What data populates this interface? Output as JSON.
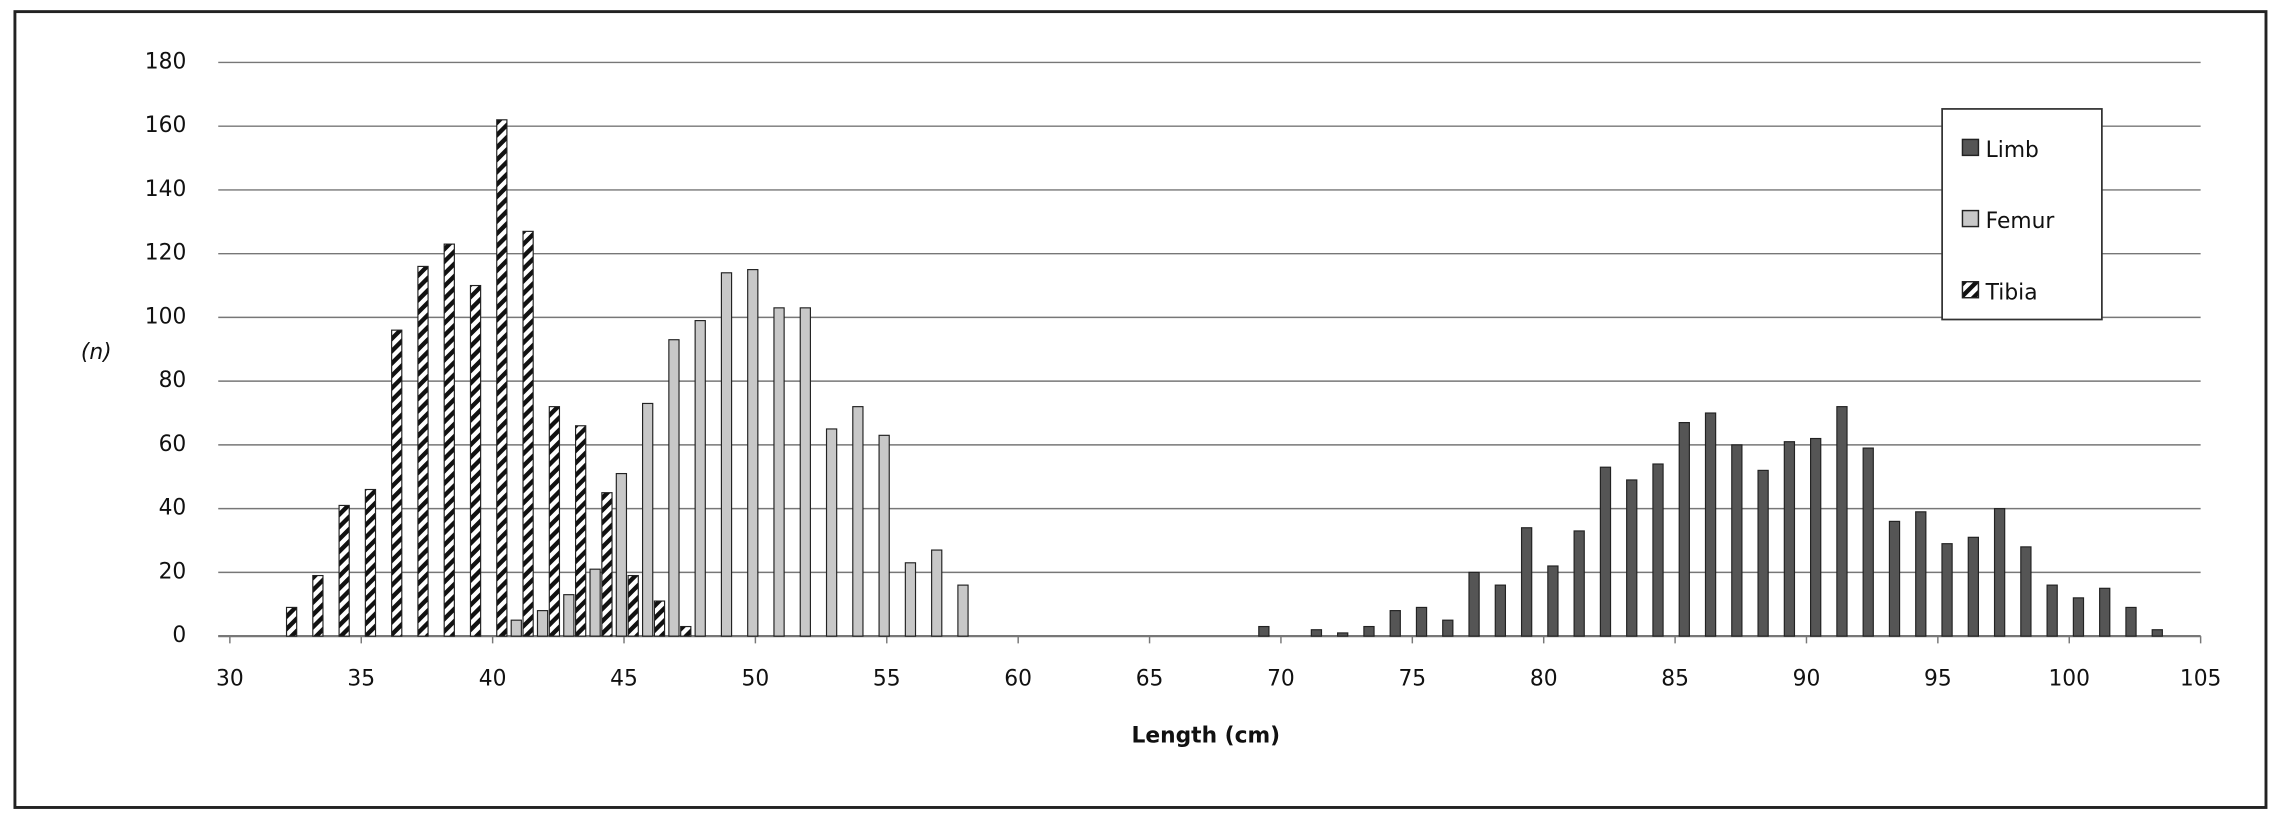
{
  "chart_data": {
    "type": "bar",
    "x_label": "Length (cm)",
    "y_label": "(n)",
    "x": [
      32,
      33,
      34,
      35,
      36,
      37,
      38,
      39,
      40,
      41,
      42,
      43,
      44,
      45,
      46,
      47,
      48,
      49,
      50,
      51,
      52,
      53,
      54,
      55,
      56,
      57,
      58,
      59,
      60,
      61,
      62,
      63,
      64,
      65,
      66,
      67,
      68,
      69,
      70,
      71,
      72,
      73,
      74,
      75,
      76,
      77,
      78,
      79,
      80,
      81,
      82,
      83,
      84,
      85,
      86,
      87,
      88,
      89,
      90,
      91,
      92,
      93,
      94,
      95,
      96,
      97,
      98,
      99,
      100,
      101,
      102,
      103
    ],
    "series": [
      {
        "name": "Limb",
        "color": "#555555",
        "values": [
          null,
          null,
          null,
          null,
          null,
          null,
          null,
          null,
          null,
          null,
          null,
          null,
          null,
          null,
          null,
          null,
          null,
          null,
          null,
          null,
          null,
          null,
          null,
          null,
          null,
          null,
          null,
          null,
          null,
          null,
          null,
          null,
          null,
          null,
          null,
          null,
          null,
          3,
          null,
          2,
          1,
          3,
          8,
          9,
          5,
          20,
          16,
          34,
          22,
          33,
          53,
          49,
          54,
          67,
          70,
          60,
          52,
          61,
          62,
          72,
          59,
          36,
          39,
          29,
          31,
          40,
          28,
          16,
          12,
          15,
          9,
          2
        ]
      },
      {
        "name": "Femur",
        "color": "#c8c8c8",
        "values": [
          null,
          null,
          null,
          null,
          null,
          null,
          null,
          null,
          null,
          5,
          8,
          13,
          21,
          51,
          73,
          93,
          99,
          114,
          115,
          103,
          103,
          65,
          72,
          63,
          23,
          27,
          16,
          null,
          null,
          null,
          null,
          null,
          null,
          null,
          null,
          null,
          null,
          null,
          null,
          null,
          null,
          null,
          null,
          null,
          null,
          null,
          null,
          null,
          null,
          null,
          null,
          null,
          null,
          null,
          null,
          null,
          null,
          null,
          null,
          null,
          null,
          null,
          null,
          null,
          null,
          null,
          null,
          null,
          null,
          null,
          null,
          null
        ]
      },
      {
        "name": "Tibia",
        "color": "#111111",
        "hatch": true,
        "values": [
          9,
          19,
          41,
          46,
          96,
          116,
          123,
          110,
          162,
          127,
          72,
          66,
          45,
          19,
          11,
          3,
          null,
          null,
          null,
          null,
          null,
          null,
          null,
          null,
          null,
          null,
          null,
          null,
          null,
          null,
          null,
          null,
          null,
          null,
          null,
          null,
          null,
          null,
          null,
          null,
          null,
          null,
          null,
          null,
          null,
          null,
          null,
          null,
          null,
          null,
          null,
          null,
          null,
          null,
          null,
          null,
          null,
          null,
          null,
          null,
          null,
          null,
          null,
          null,
          null,
          null,
          null,
          null,
          null,
          null,
          null,
          null
        ]
      }
    ],
    "xlim": [
      30,
      105
    ],
    "xticks": [
      30,
      35,
      40,
      45,
      50,
      55,
      60,
      65,
      70,
      75,
      80,
      85,
      90,
      95,
      100,
      105
    ],
    "ylim": [
      0,
      180
    ],
    "yticks": [
      0,
      20,
      40,
      60,
      80,
      100,
      120,
      140,
      160,
      180
    ],
    "grid": true,
    "legend": "upper right"
  }
}
